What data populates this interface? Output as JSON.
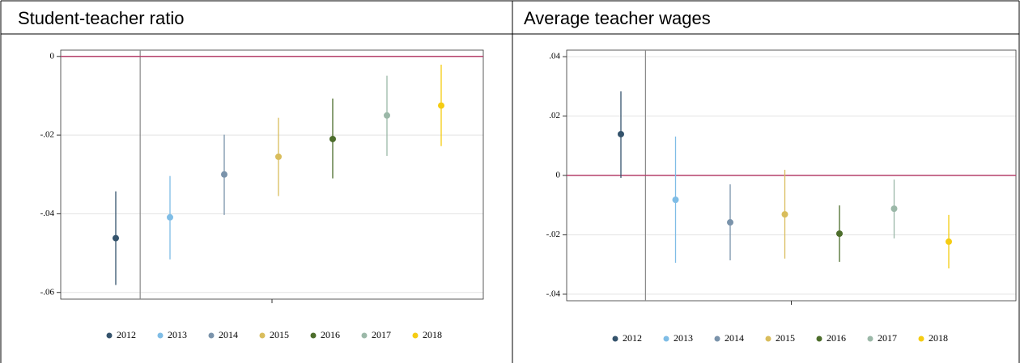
{
  "chart_data": [
    {
      "type": "errorbar",
      "title": "Student-teacher ratio",
      "ylim": [
        -0.0617,
        0.0016
      ],
      "yticks": [
        0,
        {
          "value": -0.02,
          "label": "-.02"
        },
        {
          "value": -0.04,
          "label": "-.04"
        },
        {
          "value": -0.06,
          "label": "-.06"
        }
      ],
      "grid": true,
      "hline": 0,
      "series": [
        {
          "name": "2012",
          "color": "#34536c",
          "values": [
            -0.0462
          ],
          "low": [
            -0.0581
          ],
          "high": [
            -0.0343
          ]
        },
        {
          "name": "2013",
          "color": "#7fbde6",
          "values": [
            -0.0409
          ],
          "low": [
            -0.0516
          ],
          "high": [
            -0.0304
          ]
        },
        {
          "name": "2014",
          "color": "#7a93ab",
          "values": [
            -0.03
          ],
          "low": [
            -0.0403
          ],
          "high": [
            -0.0199
          ]
        },
        {
          "name": "2015",
          "color": "#d9bd5c",
          "values": [
            -0.0255
          ],
          "low": [
            -0.0355
          ],
          "high": [
            -0.0156
          ]
        },
        {
          "name": "2016",
          "color": "#4c6d2b",
          "values": [
            -0.021
          ],
          "low": [
            -0.031
          ],
          "high": [
            -0.0107
          ]
        },
        {
          "name": "2017",
          "color": "#9bb8a8",
          "values": [
            -0.015
          ],
          "low": [
            -0.0253
          ],
          "high": [
            -0.0049
          ]
        },
        {
          "name": "2018",
          "color": "#f5cc12",
          "values": [
            -0.0125
          ],
          "low": [
            -0.0228
          ],
          "high": [
            -0.0021
          ]
        }
      ]
    },
    {
      "type": "errorbar",
      "title": "Average teacher wages",
      "ylim": [
        -0.0422,
        0.0422
      ],
      "yticks": [
        {
          "value": 0.04,
          "label": ".04"
        },
        {
          "value": 0.02,
          "label": ".02"
        },
        0,
        {
          "value": -0.02,
          "label": "-.02"
        },
        {
          "value": -0.04,
          "label": "-.04"
        }
      ],
      "grid": true,
      "hline": 0,
      "series": [
        {
          "name": "2012",
          "color": "#34536c",
          "values": [
            0.0139
          ],
          "low": [
            -0.0008
          ],
          "high": [
            0.0283
          ]
        },
        {
          "name": "2013",
          "color": "#7fbde6",
          "values": [
            -0.0082
          ],
          "low": [
            -0.0294
          ],
          "high": [
            0.0131
          ]
        },
        {
          "name": "2014",
          "color": "#7a93ab",
          "values": [
            -0.0158
          ],
          "low": [
            -0.0286
          ],
          "high": [
            -0.003
          ]
        },
        {
          "name": "2015",
          "color": "#d9bd5c",
          "values": [
            -0.0131
          ],
          "low": [
            -0.028
          ],
          "high": [
            0.0019
          ]
        },
        {
          "name": "2016",
          "color": "#4c6d2b",
          "values": [
            -0.0196
          ],
          "low": [
            -0.0291
          ],
          "high": [
            -0.0101
          ]
        },
        {
          "name": "2017",
          "color": "#9bb8a8",
          "values": [
            -0.0112
          ],
          "low": [
            -0.0212
          ],
          "high": [
            -0.0014
          ]
        },
        {
          "name": "2018",
          "color": "#f5cc12",
          "values": [
            -0.0223
          ],
          "low": [
            -0.0313
          ],
          "high": [
            -0.0133
          ]
        }
      ]
    }
  ]
}
